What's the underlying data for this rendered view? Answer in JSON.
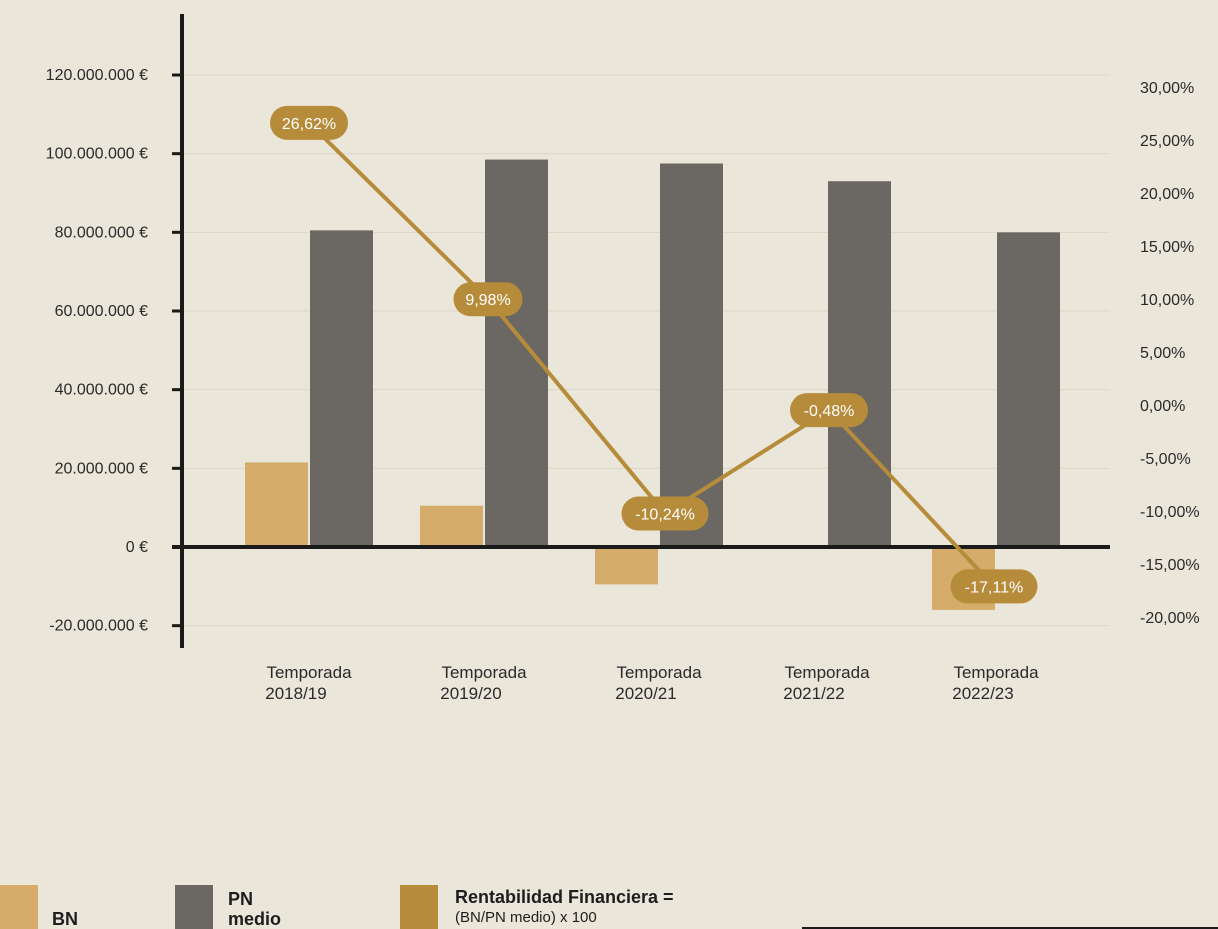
{
  "colors": {
    "bn": "#d6ac6a",
    "pn": "#6b6863",
    "line": "#b68c3b",
    "pill": "#b68c3b",
    "axis": "#1a1a1a",
    "grid": "#ddd6c6"
  },
  "chart_data": {
    "type": "bar",
    "title": "",
    "categories": [
      "Temporada\n2018/19",
      "Temporada\n2019/20",
      "Temporada\n2020/21",
      "Temporada\n2021/22",
      "Temporada\n2022/23"
    ],
    "series": [
      {
        "name": "BN",
        "axis": "left",
        "values": [
          21500000,
          10500000,
          -9500000,
          0,
          -16000000
        ]
      },
      {
        "name": "PN medio",
        "axis": "left",
        "values": [
          80500000,
          98500000,
          97500000,
          93000000,
          80000000
        ]
      },
      {
        "name": "Rentabilidad Financiera",
        "axis": "right",
        "kind": "line",
        "values": [
          26.62,
          9.98,
          -10.24,
          -0.48,
          -17.11
        ],
        "labels": [
          "26,62%",
          "9,98%",
          "-10,24%",
          "-0,48%",
          "-17,11%"
        ]
      }
    ],
    "y_left": {
      "min": -20000000,
      "max": 120000000,
      "step": 20000000,
      "tick_labels": [
        "-20.000.000 €",
        "0 €",
        "20.000.000 €",
        "40.000.000 €",
        "60.000.000 €",
        "80.000.000 €",
        "100.000.000 €",
        "120.000.000 €"
      ]
    },
    "y_right": {
      "min": -20,
      "max": 30,
      "step": 5,
      "tick_labels": [
        "-20,00%",
        "-15,00%",
        "-10,00%",
        "-5,00%",
        "0,00%",
        "5,00%",
        "10,00%",
        "15,00%",
        "20,00%",
        "25,00%",
        "30,00%"
      ]
    },
    "grid": true
  },
  "legend": {
    "bn_label": "BN",
    "pn_label": "PN\nmedio",
    "rf_label": "Rentabilidad Financiera =",
    "rf_formula": "(BN/PN medio) x 100"
  }
}
